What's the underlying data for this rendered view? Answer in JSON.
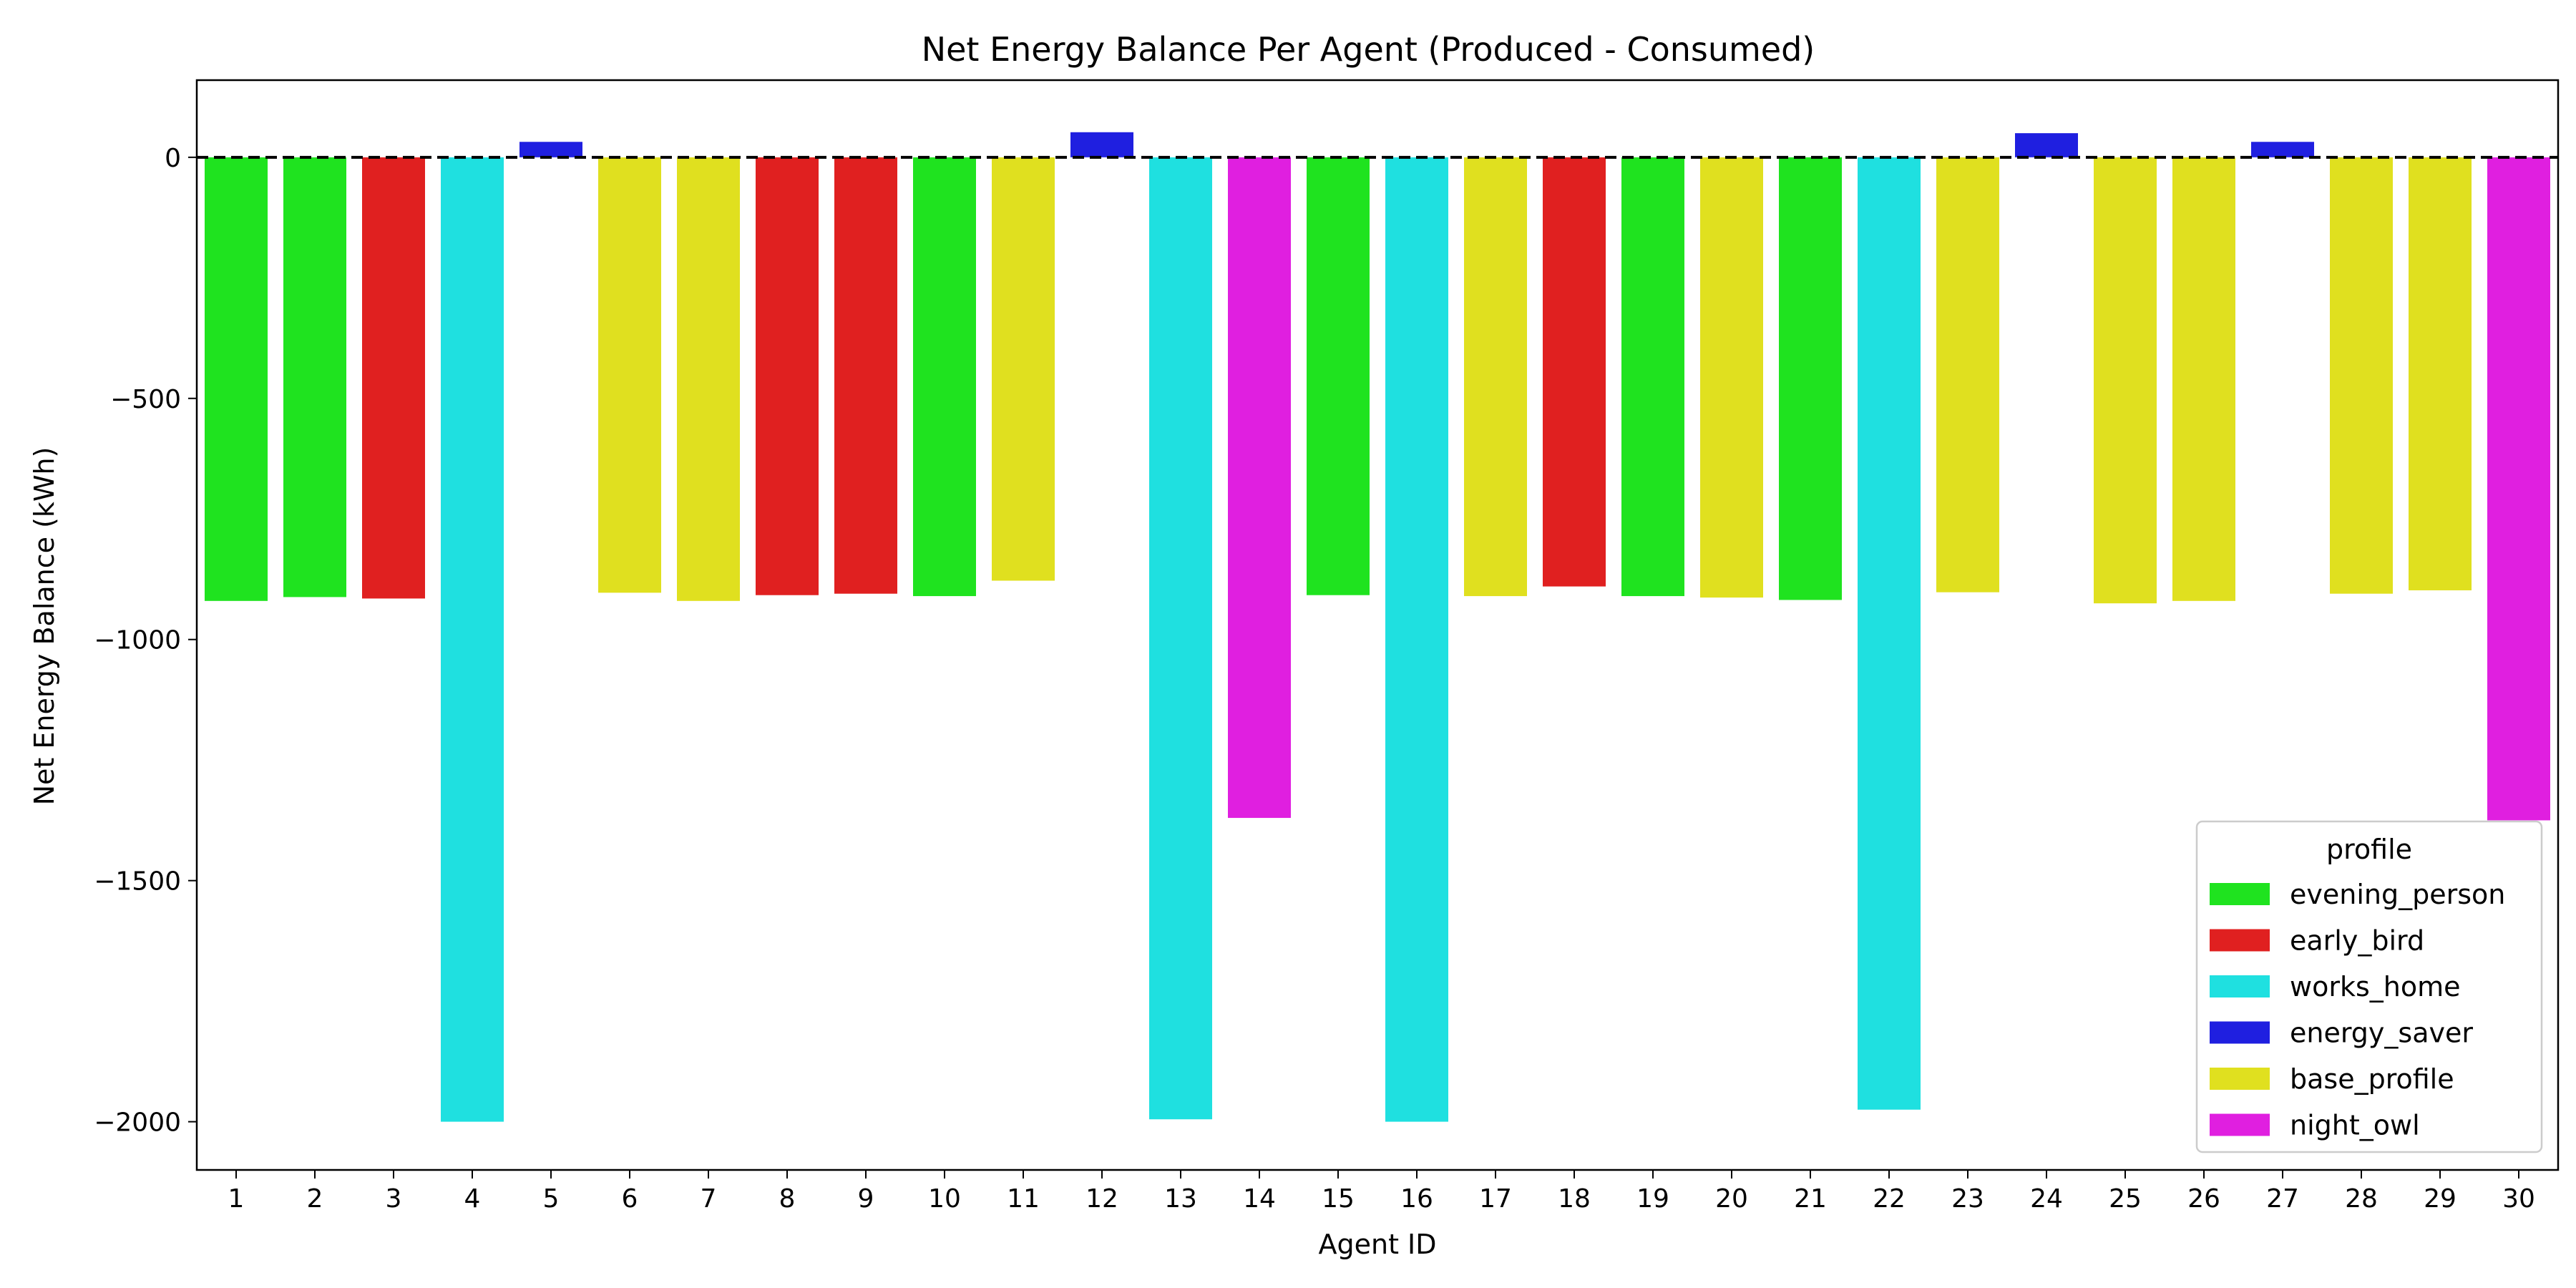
{
  "chart_data": {
    "type": "bar",
    "title": "Net Energy Balance Per Agent (Produced - Consumed)",
    "xlabel": "Agent ID",
    "ylabel": "Net Energy Balance (kWh)",
    "ylim": [
      -2100,
      160
    ],
    "yticks": [
      0,
      -500,
      -1000,
      -1500,
      -2000
    ],
    "ytick_labels": [
      "0",
      "−500",
      "−1000",
      "−1500",
      "−2000"
    ],
    "grid": false,
    "reference_line": {
      "y": 0,
      "style": "dashed",
      "color": "#000000"
    },
    "categories": [
      "1",
      "2",
      "3",
      "4",
      "5",
      "6",
      "7",
      "8",
      "9",
      "10",
      "11",
      "12",
      "13",
      "14",
      "15",
      "16",
      "17",
      "18",
      "19",
      "20",
      "21",
      "22",
      "23",
      "24",
      "25",
      "26",
      "27",
      "28",
      "29",
      "30"
    ],
    "values": [
      -920,
      -912,
      -915,
      -2000,
      32,
      -903,
      -920,
      -908,
      -905,
      -910,
      -878,
      52,
      -1995,
      -1370,
      -908,
      -2000,
      -910,
      -890,
      -910,
      -913,
      -918,
      -1975,
      -902,
      50,
      -925,
      -920,
      32,
      -905,
      -898,
      -1375
    ],
    "profiles": [
      "evening_person",
      "evening_person",
      "early_bird",
      "works_home",
      "energy_saver",
      "base_profile",
      "base_profile",
      "early_bird",
      "early_bird",
      "evening_person",
      "base_profile",
      "energy_saver",
      "works_home",
      "night_owl",
      "evening_person",
      "works_home",
      "base_profile",
      "early_bird",
      "evening_person",
      "base_profile",
      "evening_person",
      "works_home",
      "base_profile",
      "energy_saver",
      "base_profile",
      "base_profile",
      "energy_saver",
      "base_profile",
      "base_profile",
      "night_owl"
    ],
    "legend": {
      "title": "profile",
      "placement": "lower-right",
      "entries": [
        {
          "name": "evening_person",
          "color": "#1fe31f"
        },
        {
          "name": "early_bird",
          "color": "#e02020"
        },
        {
          "name": "works_home",
          "color": "#1fe0e0"
        },
        {
          "name": "energy_saver",
          "color": "#1f1fe0"
        },
        {
          "name": "base_profile",
          "color": "#e0e01f"
        },
        {
          "name": "night_owl",
          "color": "#e01fe0"
        }
      ]
    }
  }
}
